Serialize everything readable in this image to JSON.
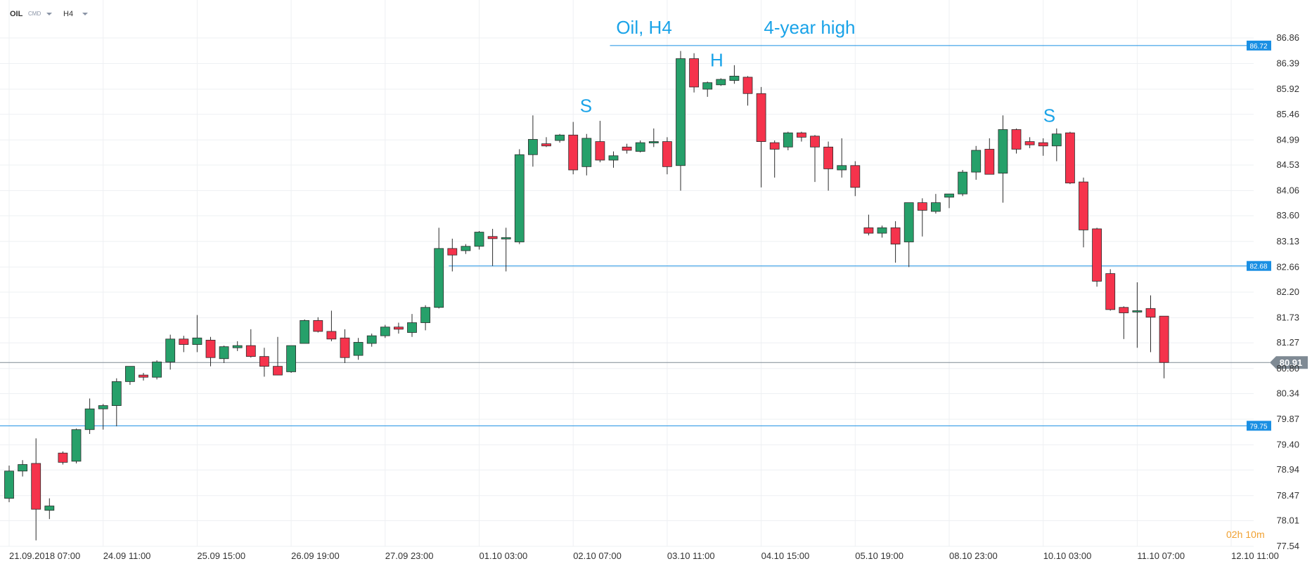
{
  "header": {
    "symbol": "OIL",
    "type": "CMD",
    "interval": "H4"
  },
  "timer": {
    "hours": "02",
    "h_unit": "h",
    "minutes": "10",
    "m_unit": "m"
  },
  "colors": {
    "up": "#26a06a",
    "down": "#f5334c",
    "level": "#1a8fe3",
    "price_tag": "#7f8a94",
    "annotation": "#1aa3e8",
    "timer": "#f0a030"
  },
  "chart_data": {
    "type": "candlestick",
    "title": "",
    "ylim": [
      77.54,
      86.86
    ],
    "y_ticks": [
      "86.86",
      "86.39",
      "85.92",
      "85.46",
      "84.99",
      "84.53",
      "84.06",
      "83.60",
      "83.13",
      "82.66",
      "82.20",
      "81.73",
      "81.27",
      "80.80",
      "80.34",
      "79.87",
      "79.40",
      "78.94",
      "78.47",
      "78.01",
      "77.54"
    ],
    "x_labels": [
      {
        "bar": 0,
        "text": "21.09.2018  07:00"
      },
      {
        "bar": 7,
        "text": "24.09  11:00"
      },
      {
        "bar": 14,
        "text": "25.09  15:00"
      },
      {
        "bar": 21,
        "text": "26.09  19:00"
      },
      {
        "bar": 28,
        "text": "27.09  23:00"
      },
      {
        "bar": 35,
        "text": "01.10  03:00"
      },
      {
        "bar": 42,
        "text": "02.10  07:00"
      },
      {
        "bar": 49,
        "text": "03.10  11:00"
      },
      {
        "bar": 56,
        "text": "04.10  15:00"
      },
      {
        "bar": 63,
        "text": "05.10  19:00"
      },
      {
        "bar": 70,
        "text": "08.10  23:00"
      },
      {
        "bar": 77,
        "text": "10.10  03:00"
      },
      {
        "bar": 84,
        "text": "11.10  07:00"
      },
      {
        "bar": 91,
        "text": "12.10  11:00"
      }
    ],
    "candles": [
      {
        "o": 78.42,
        "h": 79.02,
        "l": 78.35,
        "c": 78.92
      },
      {
        "o": 78.92,
        "h": 79.12,
        "l": 78.82,
        "c": 79.04
      },
      {
        "o": 79.06,
        "h": 79.52,
        "l": 77.65,
        "c": 78.22
      },
      {
        "o": 78.2,
        "h": 78.42,
        "l": 78.04,
        "c": 78.28
      },
      {
        "o": 79.25,
        "h": 79.28,
        "l": 79.04,
        "c": 79.08
      },
      {
        "o": 79.1,
        "h": 79.7,
        "l": 79.06,
        "c": 79.68
      },
      {
        "o": 79.68,
        "h": 80.25,
        "l": 79.6,
        "c": 80.06
      },
      {
        "o": 80.06,
        "h": 80.15,
        "l": 79.68,
        "c": 80.12
      },
      {
        "o": 80.12,
        "h": 80.62,
        "l": 79.74,
        "c": 80.56
      },
      {
        "o": 80.56,
        "h": 80.84,
        "l": 80.5,
        "c": 80.84
      },
      {
        "o": 80.68,
        "h": 80.72,
        "l": 80.58,
        "c": 80.64
      },
      {
        "o": 80.64,
        "h": 80.95,
        "l": 80.6,
        "c": 80.92
      },
      {
        "o": 80.92,
        "h": 81.42,
        "l": 80.78,
        "c": 81.34
      },
      {
        "o": 81.34,
        "h": 81.4,
        "l": 81.1,
        "c": 81.24
      },
      {
        "o": 81.24,
        "h": 81.78,
        "l": 81.1,
        "c": 81.36
      },
      {
        "o": 81.32,
        "h": 81.38,
        "l": 80.84,
        "c": 81.0
      },
      {
        "o": 80.98,
        "h": 81.22,
        "l": 80.9,
        "c": 81.2
      },
      {
        "o": 81.18,
        "h": 81.3,
        "l": 81.12,
        "c": 81.22
      },
      {
        "o": 81.22,
        "h": 81.52,
        "l": 81.0,
        "c": 81.02
      },
      {
        "o": 81.02,
        "h": 81.18,
        "l": 80.65,
        "c": 80.84
      },
      {
        "o": 80.84,
        "h": 81.38,
        "l": 80.68,
        "c": 80.68
      },
      {
        "o": 80.74,
        "h": 81.22,
        "l": 80.72,
        "c": 81.22
      },
      {
        "o": 81.26,
        "h": 81.7,
        "l": 81.26,
        "c": 81.68
      },
      {
        "o": 81.68,
        "h": 81.74,
        "l": 81.46,
        "c": 81.48
      },
      {
        "o": 81.48,
        "h": 81.86,
        "l": 81.3,
        "c": 81.34
      },
      {
        "o": 81.36,
        "h": 81.52,
        "l": 80.9,
        "c": 81.0
      },
      {
        "o": 81.04,
        "h": 81.36,
        "l": 80.96,
        "c": 81.28
      },
      {
        "o": 81.26,
        "h": 81.44,
        "l": 81.2,
        "c": 81.4
      },
      {
        "o": 81.4,
        "h": 81.6,
        "l": 81.36,
        "c": 81.56
      },
      {
        "o": 81.56,
        "h": 81.64,
        "l": 81.44,
        "c": 81.52
      },
      {
        "o": 81.46,
        "h": 81.8,
        "l": 81.38,
        "c": 81.64
      },
      {
        "o": 81.64,
        "h": 81.96,
        "l": 81.5,
        "c": 81.92
      },
      {
        "o": 81.92,
        "h": 83.38,
        "l": 81.9,
        "c": 83.0
      },
      {
        "o": 83.0,
        "h": 83.18,
        "l": 82.58,
        "c": 82.88
      },
      {
        "o": 82.96,
        "h": 83.08,
        "l": 82.9,
        "c": 83.04
      },
      {
        "o": 83.04,
        "h": 83.32,
        "l": 82.98,
        "c": 83.3
      },
      {
        "o": 83.22,
        "h": 83.36,
        "l": 82.68,
        "c": 83.18
      },
      {
        "o": 83.2,
        "h": 83.38,
        "l": 82.58,
        "c": 83.2
      },
      {
        "o": 83.12,
        "h": 84.82,
        "l": 83.08,
        "c": 84.72
      },
      {
        "o": 84.72,
        "h": 85.44,
        "l": 84.5,
        "c": 85.0
      },
      {
        "o": 84.92,
        "h": 85.04,
        "l": 84.86,
        "c": 84.88
      },
      {
        "o": 84.98,
        "h": 85.1,
        "l": 84.94,
        "c": 85.08
      },
      {
        "o": 85.08,
        "h": 85.32,
        "l": 84.36,
        "c": 84.44
      },
      {
        "o": 84.5,
        "h": 85.1,
        "l": 84.34,
        "c": 85.02
      },
      {
        "o": 84.96,
        "h": 85.34,
        "l": 84.58,
        "c": 84.62
      },
      {
        "o": 84.62,
        "h": 84.78,
        "l": 84.48,
        "c": 84.7
      },
      {
        "o": 84.86,
        "h": 84.92,
        "l": 84.74,
        "c": 84.8
      },
      {
        "o": 84.78,
        "h": 84.98,
        "l": 84.76,
        "c": 84.94
      },
      {
        "o": 84.94,
        "h": 85.2,
        "l": 84.86,
        "c": 84.96
      },
      {
        "o": 84.96,
        "h": 85.04,
        "l": 84.36,
        "c": 84.5
      },
      {
        "o": 84.52,
        "h": 86.62,
        "l": 84.06,
        "c": 86.48
      },
      {
        "o": 86.48,
        "h": 86.58,
        "l": 85.86,
        "c": 85.96
      },
      {
        "o": 85.92,
        "h": 86.06,
        "l": 85.78,
        "c": 86.04
      },
      {
        "o": 86.0,
        "h": 86.12,
        "l": 85.98,
        "c": 86.1
      },
      {
        "o": 86.08,
        "h": 86.36,
        "l": 86.02,
        "c": 86.16
      },
      {
        "o": 86.14,
        "h": 86.16,
        "l": 85.62,
        "c": 85.84
      },
      {
        "o": 85.84,
        "h": 85.96,
        "l": 84.12,
        "c": 84.96
      },
      {
        "o": 84.94,
        "h": 84.98,
        "l": 84.3,
        "c": 84.82
      },
      {
        "o": 84.86,
        "h": 85.14,
        "l": 84.8,
        "c": 85.12
      },
      {
        "o": 85.12,
        "h": 85.14,
        "l": 84.96,
        "c": 85.04
      },
      {
        "o": 85.06,
        "h": 85.08,
        "l": 84.22,
        "c": 84.86
      },
      {
        "o": 84.86,
        "h": 84.96,
        "l": 84.06,
        "c": 84.46
      },
      {
        "o": 84.44,
        "h": 85.02,
        "l": 84.3,
        "c": 84.52
      },
      {
        "o": 84.52,
        "h": 84.6,
        "l": 83.96,
        "c": 84.12
      },
      {
        "o": 83.38,
        "h": 83.62,
        "l": 83.24,
        "c": 83.28
      },
      {
        "o": 83.28,
        "h": 83.42,
        "l": 83.2,
        "c": 83.38
      },
      {
        "o": 83.38,
        "h": 83.5,
        "l": 82.74,
        "c": 83.08
      },
      {
        "o": 83.12,
        "h": 83.84,
        "l": 82.66,
        "c": 83.84
      },
      {
        "o": 83.84,
        "h": 83.92,
        "l": 83.22,
        "c": 83.7
      },
      {
        "o": 83.68,
        "h": 84.0,
        "l": 83.64,
        "c": 83.84
      },
      {
        "o": 83.94,
        "h": 84.0,
        "l": 83.74,
        "c": 84.0
      },
      {
        "o": 84.0,
        "h": 84.44,
        "l": 83.96,
        "c": 84.4
      },
      {
        "o": 84.4,
        "h": 84.88,
        "l": 84.26,
        "c": 84.8
      },
      {
        "o": 84.82,
        "h": 85.02,
        "l": 84.36,
        "c": 84.36
      },
      {
        "o": 84.38,
        "h": 85.44,
        "l": 83.84,
        "c": 85.18
      },
      {
        "o": 85.18,
        "h": 85.2,
        "l": 84.74,
        "c": 84.82
      },
      {
        "o": 84.96,
        "h": 85.04,
        "l": 84.84,
        "c": 84.9
      },
      {
        "o": 84.94,
        "h": 85.02,
        "l": 84.7,
        "c": 84.88
      },
      {
        "o": 84.88,
        "h": 85.2,
        "l": 84.6,
        "c": 85.1
      },
      {
        "o": 85.12,
        "h": 85.14,
        "l": 84.18,
        "c": 84.2
      },
      {
        "o": 84.22,
        "h": 84.3,
        "l": 83.02,
        "c": 83.34
      },
      {
        "o": 83.36,
        "h": 83.38,
        "l": 82.3,
        "c": 82.4
      },
      {
        "o": 82.54,
        "h": 82.62,
        "l": 81.86,
        "c": 81.88
      },
      {
        "o": 81.92,
        "h": 81.94,
        "l": 81.34,
        "c": 81.82
      },
      {
        "o": 81.84,
        "h": 82.38,
        "l": 81.18,
        "c": 81.86
      },
      {
        "o": 81.9,
        "h": 82.14,
        "l": 81.1,
        "c": 81.74
      },
      {
        "o": 81.76,
        "h": 81.76,
        "l": 80.62,
        "c": 80.91
      }
    ],
    "levels": [
      {
        "value": 86.72,
        "label": "86.72",
        "x_from_bar": 45
      },
      {
        "value": 82.68,
        "label": "82.68",
        "x_from_bar": 33
      },
      {
        "value": 79.75,
        "label": "79.75",
        "x_from_bar": 0
      }
    ],
    "current_price": {
      "value": 80.91,
      "label": "80.91"
    },
    "annotations": [
      {
        "text": "Oil, H4",
        "bar": 45.2,
        "price": 86.94,
        "size": 26
      },
      {
        "text": "4-year high",
        "bar": 56.2,
        "price": 86.94,
        "size": 26
      },
      {
        "text": "S",
        "bar": 42.5,
        "price": 85.5,
        "size": 26
      },
      {
        "text": "H",
        "bar": 52.2,
        "price": 86.34,
        "size": 26
      },
      {
        "text": "S",
        "bar": 77.0,
        "price": 85.32,
        "size": 26
      }
    ]
  }
}
